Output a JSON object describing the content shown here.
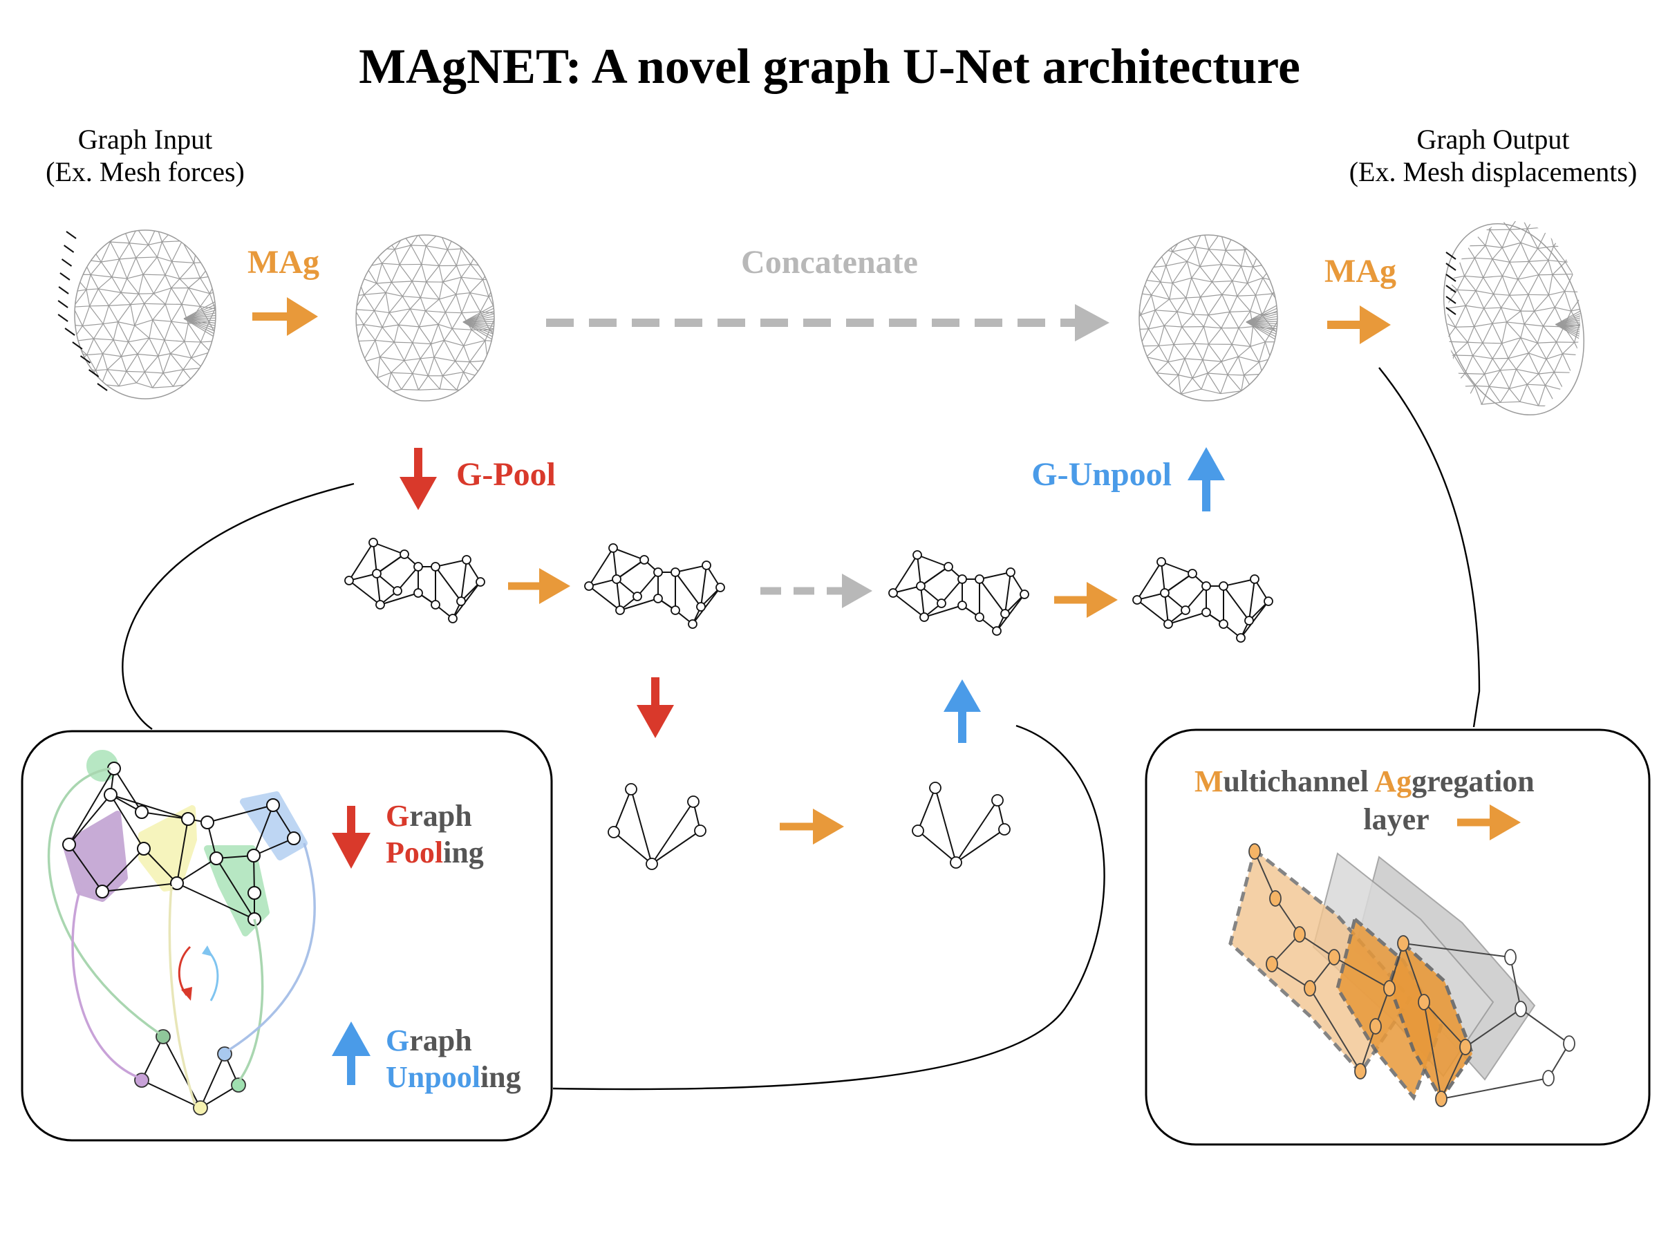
{
  "title": "MAgNET: A novel graph U-Net architecture",
  "input": {
    "line1": "Graph Input",
    "line2": "(Ex. Mesh forces)"
  },
  "output": {
    "line1": "Graph Output",
    "line2": "(Ex. Mesh displacements)"
  },
  "labels": {
    "mag_left": "MAg",
    "mag_right": "MAg",
    "concatenate": "Concatenate",
    "gpool": "G-Pool",
    "gunpool": "G-Unpool"
  },
  "pooling_box": {
    "pool_hl_1": "G",
    "pool_rest_1": "raph",
    "pool_hl_2": "Pool",
    "pool_rest_2": "ing",
    "unpool_hl_1": "G",
    "unpool_rest_1": "raph",
    "unpool_hl_2": "Unpool",
    "unpool_rest_2": "ing"
  },
  "mag_box": {
    "hl_1": "M",
    "rest_1": "ultichannel ",
    "hl_2": "Ag",
    "rest_2": "gregation",
    "line2": "layer"
  },
  "colors": {
    "mag_orange": "#e8993a",
    "pool_red": "#d9392b",
    "unpool_blue": "#4a9be8",
    "concat_gray": "#b8b8b8",
    "text_gray": "#555555",
    "purple": "#b58fc9",
    "yellow": "#f4f1a8",
    "green": "#9fe0b0",
    "light_blue": "#a9c9ef"
  }
}
